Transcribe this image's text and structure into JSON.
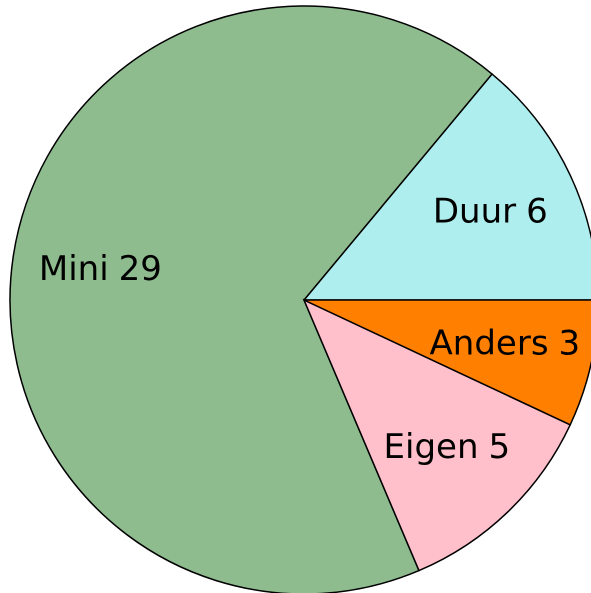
{
  "chart_data": {
    "type": "pie",
    "categories": [
      "Duur",
      "Mini",
      "Eigen",
      "Anders"
    ],
    "values": [
      6,
      29,
      5,
      3
    ],
    "colors": [
      "#afeeee",
      "#8fbc8f",
      "#ffc0cb",
      "#ff7f00"
    ]
  }
}
